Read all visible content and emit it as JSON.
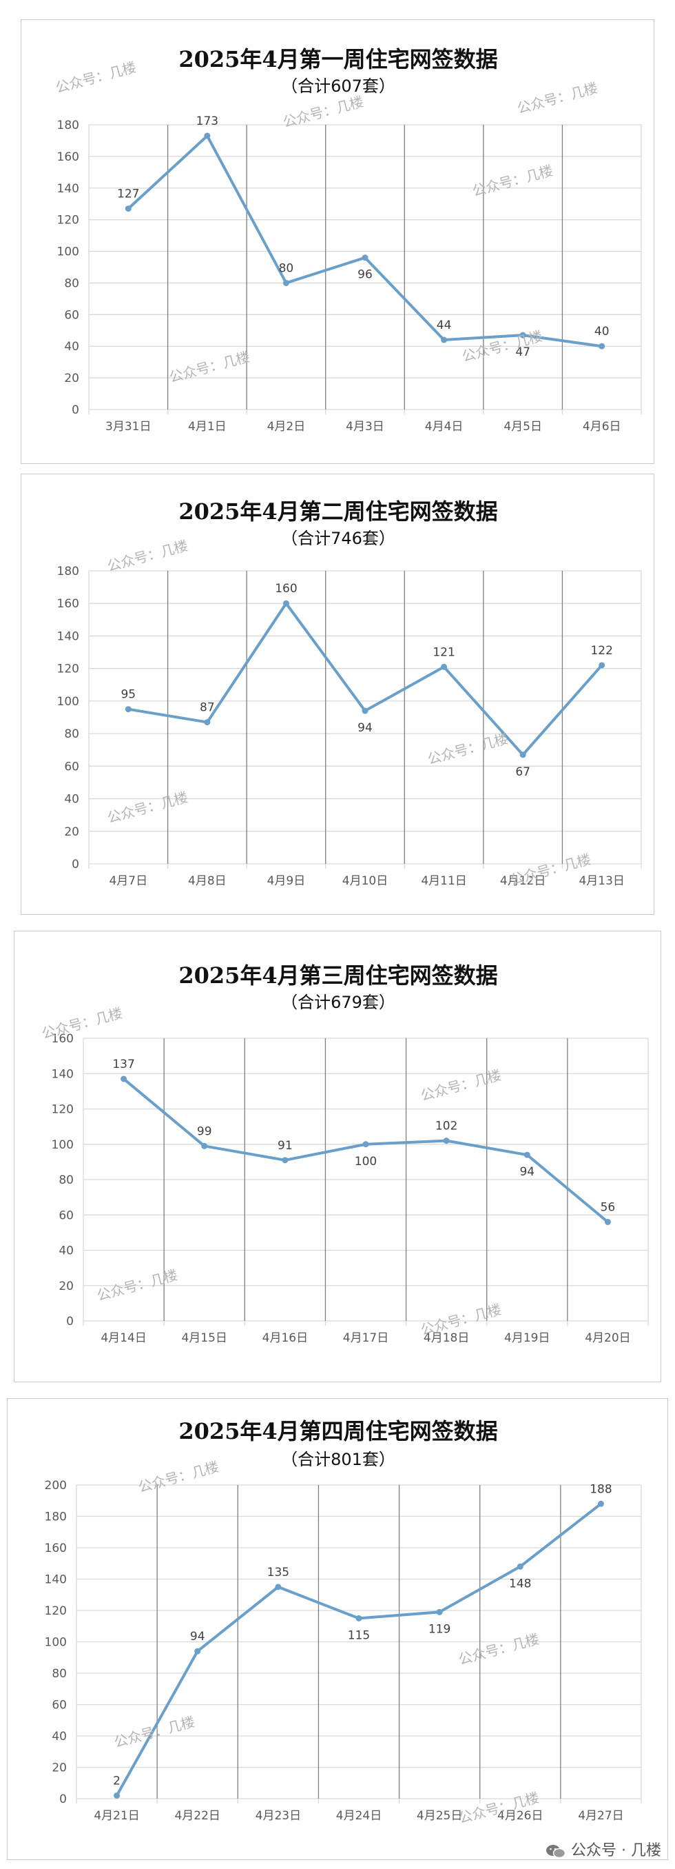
{
  "chart_data": [
    {
      "type": "line",
      "title": "2025年4月第一周住宅网签数据",
      "subtitle": "（合计607套）",
      "categories": [
        "3月31日",
        "4月1日",
        "4月2日",
        "4月3日",
        "4月4日",
        "4月5日",
        "4月6日"
      ],
      "values": [
        127,
        173,
        80,
        96,
        44,
        47,
        40
      ],
      "ylim": [
        0,
        180
      ],
      "ytick_step": 20,
      "label_pos": [
        "above",
        "above",
        "above",
        "below",
        "above",
        "below",
        "above"
      ],
      "watermarks": [
        "公众号：几楼",
        "公众号：几楼",
        "公众号：几楼",
        "公众号：几楼",
        "公众号：几楼",
        "公众号：几楼"
      ]
    },
    {
      "type": "line",
      "title": "2025年4月第二周住宅网签数据",
      "subtitle": "（合计746套）",
      "categories": [
        "4月7日",
        "4月8日",
        "4月9日",
        "4月10日",
        "4月11日",
        "4月12日",
        "4月13日"
      ],
      "values": [
        95,
        87,
        160,
        94,
        121,
        67,
        122
      ],
      "ylim": [
        0,
        180
      ],
      "ytick_step": 20,
      "label_pos": [
        "above",
        "above",
        "above",
        "below",
        "above",
        "below",
        "above"
      ],
      "watermarks": [
        "公众号：几楼",
        "公众号：几楼",
        "公众号：几楼",
        "公众号：几楼"
      ]
    },
    {
      "type": "line",
      "title": "2025年4月第三周住宅网签数据",
      "subtitle": "（合计679套）",
      "categories": [
        "4月14日",
        "4月15日",
        "4月16日",
        "4月17日",
        "4月18日",
        "4月19日",
        "4月20日"
      ],
      "values": [
        137,
        99,
        91,
        100,
        102,
        94,
        56
      ],
      "ylim": [
        0,
        160
      ],
      "ytick_step": 20,
      "label_pos": [
        "above",
        "above",
        "above",
        "below",
        "above",
        "below",
        "above"
      ],
      "watermarks": [
        "公众号：几楼",
        "公众号：几楼",
        "公众号：几楼",
        "公众号：几楼"
      ]
    },
    {
      "type": "line",
      "title": "2025年4月第四周住宅网签数据",
      "subtitle": "（合计801套）",
      "categories": [
        "4月21日",
        "4月22日",
        "4月23日",
        "4月24日",
        "4月25日",
        "4月26日",
        "4月27日"
      ],
      "values": [
        2,
        94,
        135,
        115,
        119,
        148,
        188
      ],
      "ylim": [
        0,
        200
      ],
      "ytick_step": 20,
      "label_pos": [
        "above",
        "above",
        "above",
        "below",
        "below",
        "below",
        "above"
      ],
      "watermarks": [
        "公众号：几楼",
        "公众号：几楼",
        "公众号：几楼",
        "公众号：几楼"
      ]
    }
  ],
  "footer": {
    "text": "公众号 · 几楼"
  },
  "colors": {
    "line": "#6a9fc9",
    "grid": "#d9d9d9",
    "vgrid": "#7f7f7f",
    "axis_text": "#595959"
  }
}
